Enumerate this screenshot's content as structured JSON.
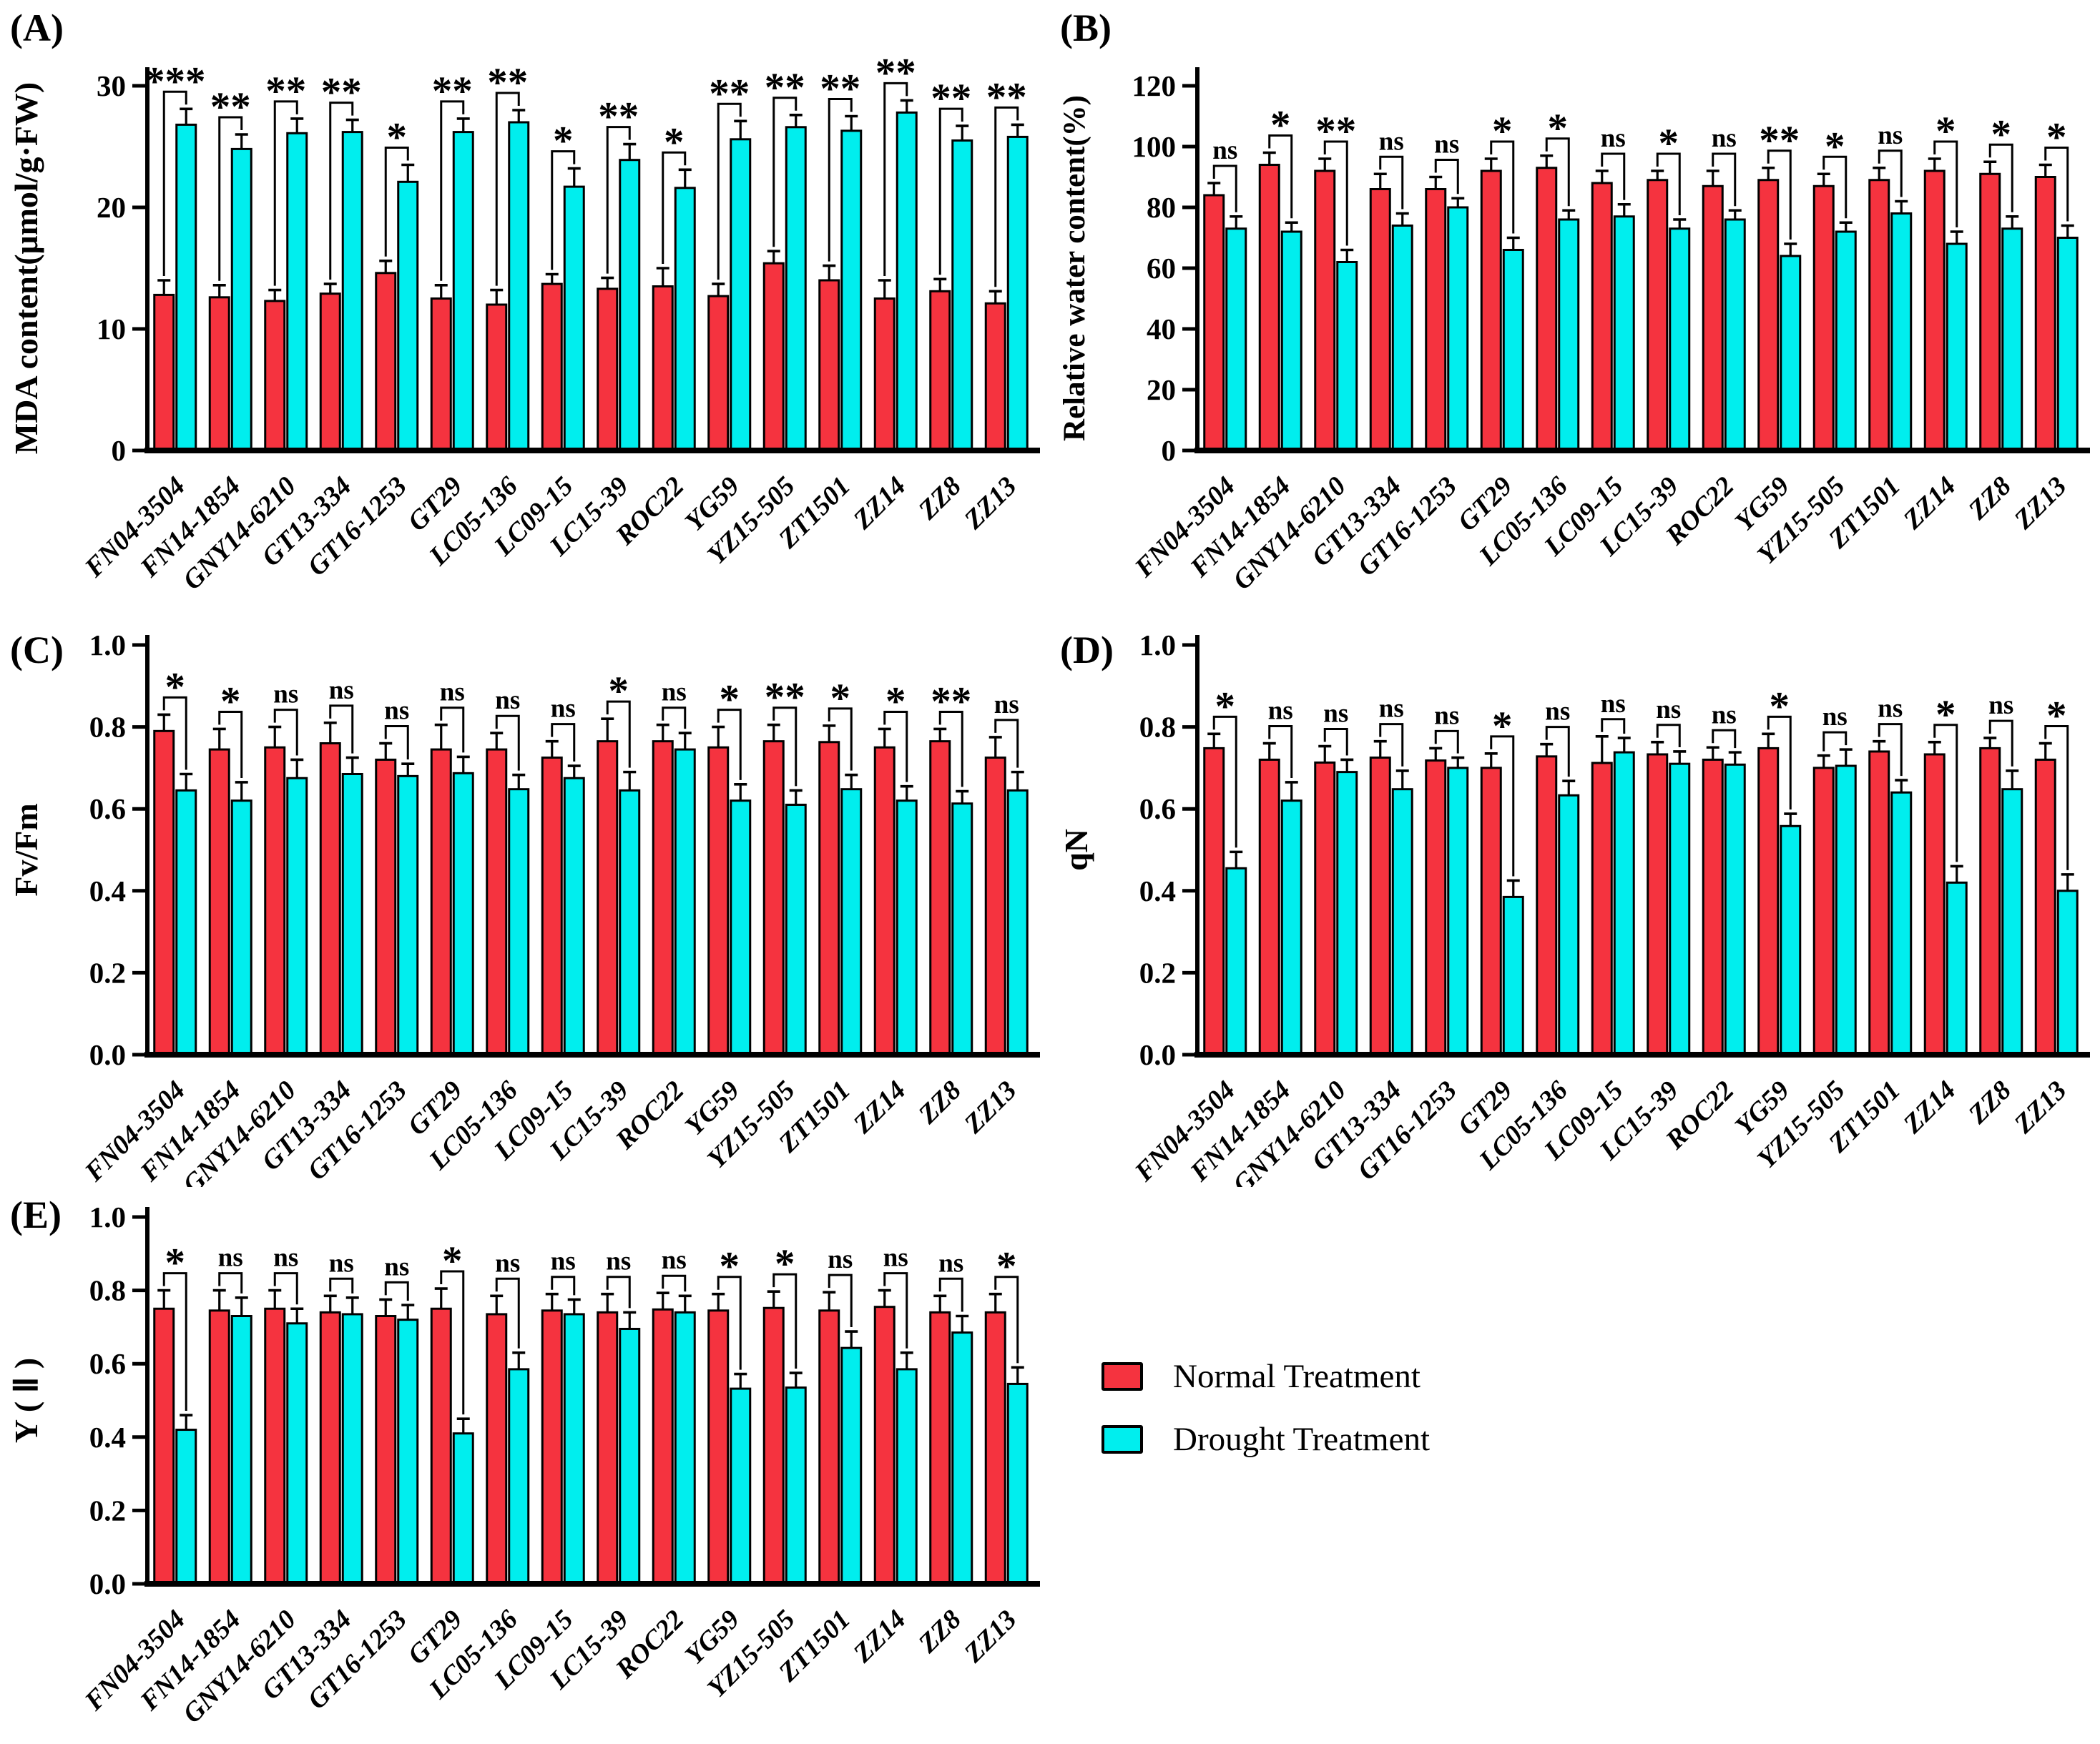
{
  "colors": {
    "normal": "#F5333F",
    "drought": "#00EEEE",
    "axis": "#000000"
  },
  "panels": {
    "a": {
      "label": "(A)"
    },
    "b": {
      "label": "(B)"
    },
    "c": {
      "label": "(C)"
    },
    "d": {
      "label": "(D)"
    },
    "e": {
      "label": "(E)"
    }
  },
  "legend": {
    "items": [
      {
        "label": "Normal Treatment",
        "color": "#F5333F"
      },
      {
        "label": "Drought Treatment",
        "color": "#00EEEE"
      }
    ]
  },
  "chart_data": [
    {
      "id": "A",
      "type": "bar",
      "ylabel": "MDA content(μmol/g·FW)",
      "ylim": [
        0,
        30
      ],
      "yticks": [
        0,
        10,
        20,
        30
      ],
      "ytick_labels": [
        "0",
        "10",
        "20",
        "30"
      ],
      "legend_position": "none",
      "grid": false,
      "categories": [
        "FN04-3504",
        "FN14-1854",
        "GNY14-6210",
        "GT13-334",
        "GT16-1253",
        "GT29",
        "LC05-136",
        "LC09-15",
        "LC15-39",
        "ROC22",
        "YG59",
        "YZ15-505",
        "ZT1501",
        "ZZ14",
        "ZZ8",
        "ZZ13"
      ],
      "series": [
        {
          "name": "Normal Treatment",
          "values": [
            12.8,
            12.6,
            12.3,
            12.9,
            14.6,
            12.5,
            12.0,
            13.7,
            13.3,
            13.5,
            12.7,
            15.4,
            14.0,
            12.5,
            13.1,
            12.1
          ],
          "errors": [
            1.2,
            1.0,
            0.9,
            0.8,
            1.0,
            1.1,
            1.2,
            0.8,
            0.9,
            1.5,
            1.0,
            1.0,
            1.2,
            1.5,
            1.0,
            1.0
          ]
        },
        {
          "name": "Drought Treatment",
          "values": [
            26.8,
            24.8,
            26.1,
            26.2,
            22.1,
            26.2,
            27.0,
            21.7,
            23.9,
            21.6,
            25.6,
            26.6,
            26.3,
            27.8,
            25.5,
            25.8
          ],
          "errors": [
            1.3,
            1.2,
            1.2,
            1.0,
            1.4,
            1.1,
            1.0,
            1.5,
            1.3,
            1.5,
            1.5,
            1.0,
            1.2,
            1.0,
            1.2,
            1.0
          ]
        }
      ],
      "significance": [
        "***",
        "**",
        "**",
        "**",
        "*",
        "**",
        "**",
        "*",
        "**",
        "*",
        "**",
        "**",
        "**",
        "**",
        "**",
        "**"
      ]
    },
    {
      "id": "B",
      "type": "bar",
      "ylabel": "Relative water content(%)",
      "ylim": [
        0,
        120
      ],
      "yticks": [
        0,
        20,
        40,
        60,
        80,
        100,
        120
      ],
      "ytick_labels": [
        "0",
        "20",
        "40",
        "60",
        "80",
        "100",
        "120"
      ],
      "legend_position": "none",
      "grid": false,
      "categories": [
        "FN04-3504",
        "FN14-1854",
        "GNY14-6210",
        "GT13-334",
        "GT16-1253",
        "GT29",
        "LC05-136",
        "LC09-15",
        "LC15-39",
        "ROC22",
        "YG59",
        "YZ15-505",
        "ZT1501",
        "ZZ14",
        "ZZ8",
        "ZZ13"
      ],
      "series": [
        {
          "name": "Normal Treatment",
          "values": [
            84,
            94,
            92,
            86,
            86,
            92,
            93,
            88,
            89,
            87,
            89,
            87,
            89,
            92,
            91,
            90
          ],
          "errors": [
            4,
            4,
            4,
            5,
            4,
            4,
            4,
            4,
            3,
            5,
            4,
            4,
            4,
            4,
            4,
            4
          ]
        },
        {
          "name": "Drought Treatment",
          "values": [
            73,
            72,
            62,
            74,
            80,
            66,
            76,
            77,
            73,
            76,
            64,
            72,
            78,
            68,
            73,
            70
          ],
          "errors": [
            4,
            3,
            4,
            4,
            3,
            4,
            3,
            4,
            3,
            3,
            4,
            3,
            4,
            4,
            4,
            4
          ]
        }
      ],
      "significance": [
        "ns",
        "*",
        "**",
        "ns",
        "ns",
        "*",
        "*",
        "ns",
        "*",
        "ns",
        "**",
        "*",
        "ns",
        "*",
        "*",
        "*"
      ]
    },
    {
      "id": "C",
      "type": "bar",
      "ylabel": "Fv/Fm",
      "ylim": [
        0,
        1.0
      ],
      "yticks": [
        0,
        0.2,
        0.4,
        0.6,
        0.8,
        1.0
      ],
      "ytick_labels": [
        "0.0",
        "0.2",
        "0.4",
        "0.6",
        "0.8",
        "1.0"
      ],
      "legend_position": "none",
      "grid": false,
      "categories": [
        "FN04-3504",
        "FN14-1854",
        "GNY14-6210",
        "GT13-334",
        "GT16-1253",
        "GT29",
        "LC05-136",
        "LC09-15",
        "LC15-39",
        "ROC22",
        "YG59",
        "YZ15-505",
        "ZT1501",
        "ZZ14",
        "ZZ8",
        "ZZ13"
      ],
      "series": [
        {
          "name": "Normal Treatment",
          "values": [
            0.79,
            0.745,
            0.75,
            0.76,
            0.72,
            0.745,
            0.745,
            0.725,
            0.765,
            0.765,
            0.75,
            0.765,
            0.763,
            0.75,
            0.765,
            0.725
          ],
          "errors": [
            0.04,
            0.05,
            0.05,
            0.05,
            0.04,
            0.06,
            0.04,
            0.04,
            0.055,
            0.04,
            0.05,
            0.04,
            0.04,
            0.045,
            0.03,
            0.05
          ]
        },
        {
          "name": "Drought Treatment",
          "values": [
            0.645,
            0.62,
            0.675,
            0.685,
            0.68,
            0.687,
            0.648,
            0.675,
            0.645,
            0.745,
            0.62,
            0.61,
            0.648,
            0.62,
            0.613,
            0.645
          ],
          "errors": [
            0.04,
            0.045,
            0.045,
            0.04,
            0.03,
            0.04,
            0.035,
            0.03,
            0.045,
            0.04,
            0.04,
            0.035,
            0.035,
            0.035,
            0.03,
            0.045
          ]
        }
      ],
      "significance": [
        "*",
        "*",
        "ns",
        "ns",
        "ns",
        "ns",
        "ns",
        "ns",
        "*",
        "ns",
        "*",
        "**",
        "*",
        "*",
        "**",
        "ns"
      ]
    },
    {
      "id": "D",
      "type": "bar",
      "ylabel": "qN",
      "ylim": [
        0,
        1.0
      ],
      "yticks": [
        0,
        0.2,
        0.4,
        0.6,
        0.8,
        1.0
      ],
      "ytick_labels": [
        "0.0",
        "0.2",
        "0.4",
        "0.6",
        "0.8",
        "1.0"
      ],
      "legend_position": "none",
      "grid": false,
      "categories": [
        "FN04-3504",
        "FN14-1854",
        "GNY14-6210",
        "GT13-334",
        "GT16-1253",
        "GT29",
        "LC05-136",
        "LC09-15",
        "LC15-39",
        "ROC22",
        "YG59",
        "YZ15-505",
        "ZT1501",
        "ZZ14",
        "ZZ8",
        "ZZ13"
      ],
      "series": [
        {
          "name": "Normal Treatment",
          "values": [
            0.748,
            0.72,
            0.713,
            0.725,
            0.718,
            0.7,
            0.728,
            0.712,
            0.733,
            0.72,
            0.748,
            0.7,
            0.74,
            0.733,
            0.748,
            0.72
          ],
          "errors": [
            0.035,
            0.04,
            0.04,
            0.04,
            0.03,
            0.035,
            0.03,
            0.065,
            0.03,
            0.03,
            0.035,
            0.03,
            0.025,
            0.03,
            0.025,
            0.04
          ]
        },
        {
          "name": "Drought Treatment",
          "values": [
            0.455,
            0.62,
            0.69,
            0.648,
            0.7,
            0.385,
            0.633,
            0.738,
            0.71,
            0.708,
            0.558,
            0.705,
            0.64,
            0.42,
            0.648,
            0.4
          ],
          "errors": [
            0.04,
            0.045,
            0.03,
            0.045,
            0.025,
            0.04,
            0.035,
            0.035,
            0.03,
            0.03,
            0.03,
            0.04,
            0.03,
            0.04,
            0.045,
            0.04
          ]
        }
      ],
      "significance": [
        "*",
        "ns",
        "ns",
        "ns",
        "ns",
        "*",
        "ns",
        "ns",
        "ns",
        "ns",
        "*",
        "ns",
        "ns",
        "*",
        "ns",
        "*"
      ]
    },
    {
      "id": "E",
      "type": "bar",
      "ylabel": "Y ( Ⅱ )",
      "ylim": [
        0,
        1.0
      ],
      "yticks": [
        0,
        0.2,
        0.4,
        0.6,
        0.8,
        1.0
      ],
      "ytick_labels": [
        "0.0",
        "0.2",
        "0.4",
        "0.6",
        "0.8",
        "1.0"
      ],
      "legend_position": "right-of-panel",
      "grid": false,
      "categories": [
        "FN04-3504",
        "FN14-1854",
        "GNY14-6210",
        "GT13-334",
        "GT16-1253",
        "GT29",
        "LC05-136",
        "LC09-15",
        "LC15-39",
        "ROC22",
        "YG59",
        "YZ15-505",
        "ZT1501",
        "ZZ14",
        "ZZ8",
        "ZZ13"
      ],
      "series": [
        {
          "name": "Normal Treatment",
          "values": [
            0.75,
            0.745,
            0.75,
            0.74,
            0.73,
            0.75,
            0.735,
            0.745,
            0.74,
            0.748,
            0.745,
            0.752,
            0.745,
            0.755,
            0.74,
            0.74
          ],
          "errors": [
            0.05,
            0.055,
            0.05,
            0.045,
            0.045,
            0.055,
            0.05,
            0.045,
            0.05,
            0.045,
            0.045,
            0.045,
            0.05,
            0.045,
            0.045,
            0.05
          ]
        },
        {
          "name": "Drought Treatment",
          "values": [
            0.42,
            0.73,
            0.71,
            0.735,
            0.72,
            0.41,
            0.585,
            0.735,
            0.695,
            0.74,
            0.532,
            0.535,
            0.643,
            0.585,
            0.685,
            0.545
          ],
          "errors": [
            0.04,
            0.05,
            0.04,
            0.045,
            0.04,
            0.04,
            0.045,
            0.04,
            0.045,
            0.045,
            0.04,
            0.04,
            0.045,
            0.045,
            0.045,
            0.045
          ]
        }
      ],
      "significance": [
        "*",
        "ns",
        "ns",
        "ns",
        "ns",
        "*",
        "ns",
        "ns",
        "ns",
        "ns",
        "*",
        "*",
        "ns",
        "ns",
        "ns",
        "*"
      ]
    }
  ]
}
